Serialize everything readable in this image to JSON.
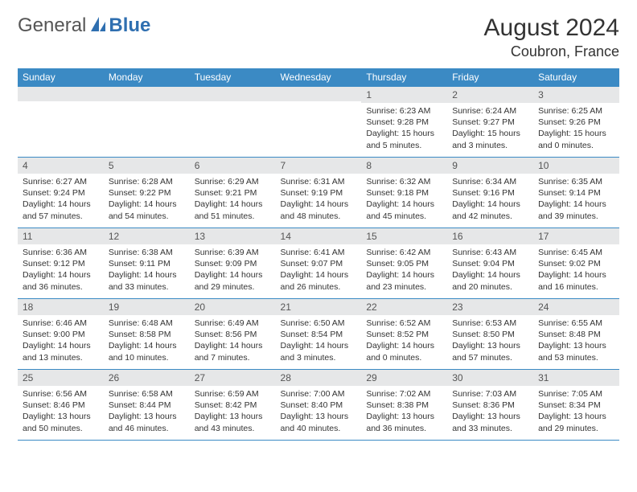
{
  "branding": {
    "logo_a": "General",
    "logo_b": "Blue",
    "logo_icon_color": "#2f6fb0"
  },
  "header": {
    "title": "August 2024",
    "location": "Coubron, France"
  },
  "styling": {
    "header_bg": "#3b8ac4",
    "header_text": "#ffffff",
    "daynum_bg": "#e6e7e8",
    "border_color": "#3b8ac4",
    "body_bg": "#ffffff",
    "title_fontsize": 30,
    "location_fontsize": 18
  },
  "calendar": {
    "day_headers": [
      "Sunday",
      "Monday",
      "Tuesday",
      "Wednesday",
      "Thursday",
      "Friday",
      "Saturday"
    ],
    "weeks": [
      [
        {
          "n": "",
          "sunrise": "",
          "sunset": "",
          "daylight": ""
        },
        {
          "n": "",
          "sunrise": "",
          "sunset": "",
          "daylight": ""
        },
        {
          "n": "",
          "sunrise": "",
          "sunset": "",
          "daylight": ""
        },
        {
          "n": "",
          "sunrise": "",
          "sunset": "",
          "daylight": ""
        },
        {
          "n": "1",
          "sunrise": "Sunrise: 6:23 AM",
          "sunset": "Sunset: 9:28 PM",
          "daylight": "Daylight: 15 hours and 5 minutes."
        },
        {
          "n": "2",
          "sunrise": "Sunrise: 6:24 AM",
          "sunset": "Sunset: 9:27 PM",
          "daylight": "Daylight: 15 hours and 3 minutes."
        },
        {
          "n": "3",
          "sunrise": "Sunrise: 6:25 AM",
          "sunset": "Sunset: 9:26 PM",
          "daylight": "Daylight: 15 hours and 0 minutes."
        }
      ],
      [
        {
          "n": "4",
          "sunrise": "Sunrise: 6:27 AM",
          "sunset": "Sunset: 9:24 PM",
          "daylight": "Daylight: 14 hours and 57 minutes."
        },
        {
          "n": "5",
          "sunrise": "Sunrise: 6:28 AM",
          "sunset": "Sunset: 9:22 PM",
          "daylight": "Daylight: 14 hours and 54 minutes."
        },
        {
          "n": "6",
          "sunrise": "Sunrise: 6:29 AM",
          "sunset": "Sunset: 9:21 PM",
          "daylight": "Daylight: 14 hours and 51 minutes."
        },
        {
          "n": "7",
          "sunrise": "Sunrise: 6:31 AM",
          "sunset": "Sunset: 9:19 PM",
          "daylight": "Daylight: 14 hours and 48 minutes."
        },
        {
          "n": "8",
          "sunrise": "Sunrise: 6:32 AM",
          "sunset": "Sunset: 9:18 PM",
          "daylight": "Daylight: 14 hours and 45 minutes."
        },
        {
          "n": "9",
          "sunrise": "Sunrise: 6:34 AM",
          "sunset": "Sunset: 9:16 PM",
          "daylight": "Daylight: 14 hours and 42 minutes."
        },
        {
          "n": "10",
          "sunrise": "Sunrise: 6:35 AM",
          "sunset": "Sunset: 9:14 PM",
          "daylight": "Daylight: 14 hours and 39 minutes."
        }
      ],
      [
        {
          "n": "11",
          "sunrise": "Sunrise: 6:36 AM",
          "sunset": "Sunset: 9:12 PM",
          "daylight": "Daylight: 14 hours and 36 minutes."
        },
        {
          "n": "12",
          "sunrise": "Sunrise: 6:38 AM",
          "sunset": "Sunset: 9:11 PM",
          "daylight": "Daylight: 14 hours and 33 minutes."
        },
        {
          "n": "13",
          "sunrise": "Sunrise: 6:39 AM",
          "sunset": "Sunset: 9:09 PM",
          "daylight": "Daylight: 14 hours and 29 minutes."
        },
        {
          "n": "14",
          "sunrise": "Sunrise: 6:41 AM",
          "sunset": "Sunset: 9:07 PM",
          "daylight": "Daylight: 14 hours and 26 minutes."
        },
        {
          "n": "15",
          "sunrise": "Sunrise: 6:42 AM",
          "sunset": "Sunset: 9:05 PM",
          "daylight": "Daylight: 14 hours and 23 minutes."
        },
        {
          "n": "16",
          "sunrise": "Sunrise: 6:43 AM",
          "sunset": "Sunset: 9:04 PM",
          "daylight": "Daylight: 14 hours and 20 minutes."
        },
        {
          "n": "17",
          "sunrise": "Sunrise: 6:45 AM",
          "sunset": "Sunset: 9:02 PM",
          "daylight": "Daylight: 14 hours and 16 minutes."
        }
      ],
      [
        {
          "n": "18",
          "sunrise": "Sunrise: 6:46 AM",
          "sunset": "Sunset: 9:00 PM",
          "daylight": "Daylight: 14 hours and 13 minutes."
        },
        {
          "n": "19",
          "sunrise": "Sunrise: 6:48 AM",
          "sunset": "Sunset: 8:58 PM",
          "daylight": "Daylight: 14 hours and 10 minutes."
        },
        {
          "n": "20",
          "sunrise": "Sunrise: 6:49 AM",
          "sunset": "Sunset: 8:56 PM",
          "daylight": "Daylight: 14 hours and 7 minutes."
        },
        {
          "n": "21",
          "sunrise": "Sunrise: 6:50 AM",
          "sunset": "Sunset: 8:54 PM",
          "daylight": "Daylight: 14 hours and 3 minutes."
        },
        {
          "n": "22",
          "sunrise": "Sunrise: 6:52 AM",
          "sunset": "Sunset: 8:52 PM",
          "daylight": "Daylight: 14 hours and 0 minutes."
        },
        {
          "n": "23",
          "sunrise": "Sunrise: 6:53 AM",
          "sunset": "Sunset: 8:50 PM",
          "daylight": "Daylight: 13 hours and 57 minutes."
        },
        {
          "n": "24",
          "sunrise": "Sunrise: 6:55 AM",
          "sunset": "Sunset: 8:48 PM",
          "daylight": "Daylight: 13 hours and 53 minutes."
        }
      ],
      [
        {
          "n": "25",
          "sunrise": "Sunrise: 6:56 AM",
          "sunset": "Sunset: 8:46 PM",
          "daylight": "Daylight: 13 hours and 50 minutes."
        },
        {
          "n": "26",
          "sunrise": "Sunrise: 6:58 AM",
          "sunset": "Sunset: 8:44 PM",
          "daylight": "Daylight: 13 hours and 46 minutes."
        },
        {
          "n": "27",
          "sunrise": "Sunrise: 6:59 AM",
          "sunset": "Sunset: 8:42 PM",
          "daylight": "Daylight: 13 hours and 43 minutes."
        },
        {
          "n": "28",
          "sunrise": "Sunrise: 7:00 AM",
          "sunset": "Sunset: 8:40 PM",
          "daylight": "Daylight: 13 hours and 40 minutes."
        },
        {
          "n": "29",
          "sunrise": "Sunrise: 7:02 AM",
          "sunset": "Sunset: 8:38 PM",
          "daylight": "Daylight: 13 hours and 36 minutes."
        },
        {
          "n": "30",
          "sunrise": "Sunrise: 7:03 AM",
          "sunset": "Sunset: 8:36 PM",
          "daylight": "Daylight: 13 hours and 33 minutes."
        },
        {
          "n": "31",
          "sunrise": "Sunrise: 7:05 AM",
          "sunset": "Sunset: 8:34 PM",
          "daylight": "Daylight: 13 hours and 29 minutes."
        }
      ]
    ]
  }
}
